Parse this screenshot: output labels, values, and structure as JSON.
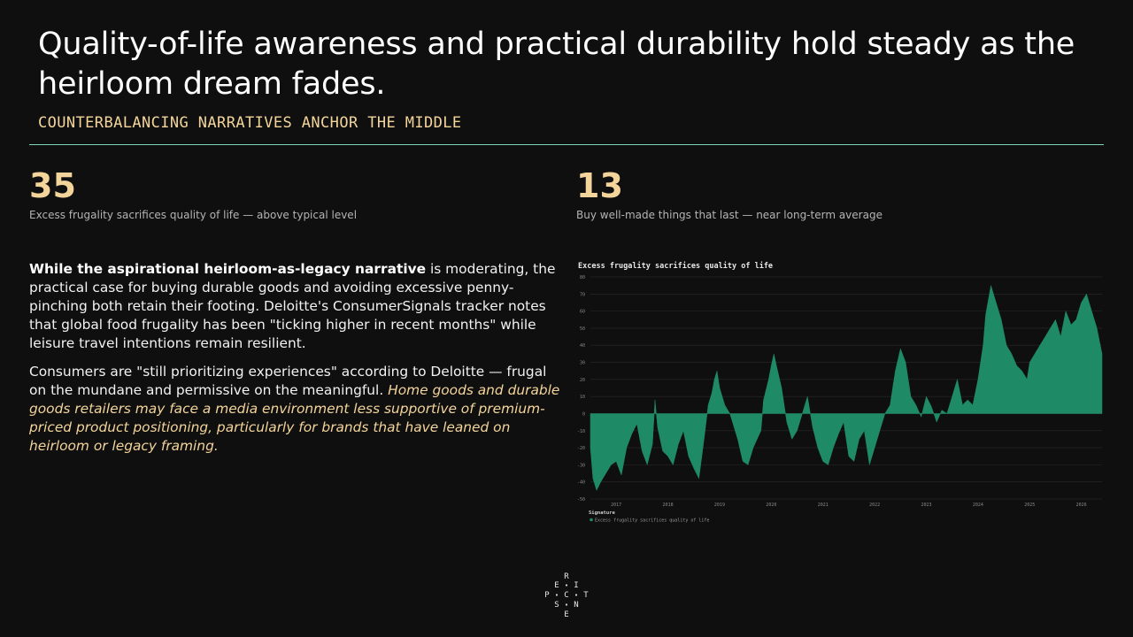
{
  "header": {
    "title": "Quality-of-life awareness and practical durability hold steady as the heirloom dream fades.",
    "subtitle": "COUNTERBALANCING NARRATIVES ANCHOR THE MIDDLE"
  },
  "kpis": [
    {
      "value": "35",
      "label": "Excess frugality sacrifices quality of life — above typical level"
    },
    {
      "value": "13",
      "label": "Buy well-made things that last — near long-term average"
    }
  ],
  "body": {
    "p1_bold": "While the aspirational heirloom-as-legacy narrative",
    "p1_rest": " is moderating, the practical case for buying durable goods and avoiding excessive penny-pinching both retain their footing. Deloitte's ConsumerSignals tracker notes that global food frugality has been \"ticking higher in recent months\" while leisure travel intentions remain resilient.",
    "p2_plain": "Consumers are \"still prioritizing experiences\" according to Deloitte — frugal on the mundane and permissive on the meaningful. ",
    "p2_italic": "Home goods and durable goods retailers may face a media environment less supportive of premium-priced product positioning, particularly for brands that have leaned on heirloom or legacy framing."
  },
  "logo": {
    "letters": [
      "R",
      "E",
      "I",
      "P",
      "C",
      "T",
      "S",
      "N",
      "E"
    ]
  },
  "colors": {
    "background": "#0f0f0f",
    "accent": "#f3d49a",
    "rule": "#7fd6b4",
    "area": "#1f8a66"
  },
  "chart_data": {
    "type": "area",
    "title": "Excess frugality sacrifices quality of life",
    "ylim": [
      -50,
      80
    ],
    "yticks": [
      80,
      70,
      60,
      50,
      40,
      30,
      20,
      10,
      0,
      -10,
      -20,
      -30,
      -40,
      -50
    ],
    "xlim": [
      2016.5,
      2026.4
    ],
    "xticks": [
      2017,
      2018,
      2019,
      2020,
      2021,
      2022,
      2023,
      2024,
      2025,
      2026
    ],
    "grid": true,
    "legend_title": "Signature",
    "legend_position": "bottom-left",
    "series": [
      {
        "name": "Excess frugality sacrifices quality of life",
        "color": "#1f8a66",
        "x": [
          2016.5,
          2016.55,
          2016.62,
          2016.7,
          2016.8,
          2016.9,
          2017.0,
          2017.1,
          2017.2,
          2017.3,
          2017.4,
          2017.5,
          2017.6,
          2017.7,
          2017.75,
          2017.8,
          2017.9,
          2018.0,
          2018.1,
          2018.2,
          2018.3,
          2018.4,
          2018.5,
          2018.6,
          2018.7,
          2018.78,
          2018.85,
          2018.9,
          2018.95,
          2019.0,
          2019.1,
          2019.2,
          2019.3,
          2019.35,
          2019.45,
          2019.55,
          2019.65,
          2019.8,
          2019.85,
          2019.95,
          2020.0,
          2020.05,
          2020.1,
          2020.2,
          2020.25,
          2020.3,
          2020.4,
          2020.5,
          2020.6,
          2020.7,
          2020.8,
          2020.9,
          2021.0,
          2021.1,
          2021.2,
          2021.3,
          2021.4,
          2021.5,
          2021.6,
          2021.7,
          2021.8,
          2021.9,
          2022.0,
          2022.1,
          2022.2,
          2022.3,
          2022.35,
          2022.4,
          2022.5,
          2022.6,
          2022.7,
          2022.8,
          2022.9,
          2023.0,
          2023.1,
          2023.2,
          2023.3,
          2023.4,
          2023.5,
          2023.6,
          2023.7,
          2023.8,
          2023.9,
          2024.0,
          2024.1,
          2024.15,
          2024.25,
          2024.35,
          2024.45,
          2024.55,
          2024.65,
          2024.75,
          2024.85,
          2024.95,
          2025.0,
          2025.1,
          2025.2,
          2025.3,
          2025.4,
          2025.5,
          2025.6,
          2025.7,
          2025.8,
          2025.9,
          2026.0,
          2026.1,
          2026.2,
          2026.3,
          2026.4
        ],
        "y": [
          -20,
          -38,
          -45,
          -40,
          -35,
          -30,
          -28,
          -36,
          -20,
          -12,
          -6,
          -22,
          -30,
          -18,
          8,
          -8,
          -22,
          -25,
          -30,
          -18,
          -10,
          -25,
          -32,
          -38,
          -15,
          5,
          12,
          20,
          25,
          15,
          5,
          0,
          -10,
          -15,
          -28,
          -30,
          -20,
          -10,
          8,
          20,
          28,
          35,
          28,
          15,
          5,
          -5,
          -15,
          -10,
          0,
          10,
          -8,
          -20,
          -28,
          -30,
          -20,
          -12,
          -5,
          -25,
          -28,
          -15,
          -10,
          -30,
          -20,
          -10,
          0,
          5,
          15,
          25,
          38,
          30,
          10,
          5,
          -2,
          10,
          4,
          -5,
          2,
          0,
          10,
          20,
          5,
          8,
          5,
          20,
          40,
          58,
          75,
          65,
          55,
          40,
          35,
          28,
          25,
          20,
          30,
          35,
          40,
          45,
          50,
          55,
          45,
          60,
          52,
          55,
          65,
          70,
          60,
          50,
          35
        ]
      }
    ]
  }
}
